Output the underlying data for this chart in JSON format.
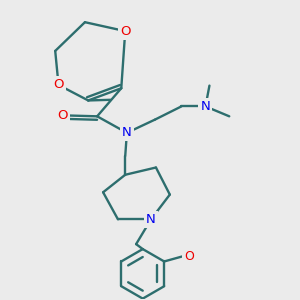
{
  "bg_color": "#ebebeb",
  "bond_color": "#2d6e6e",
  "N_color": "#0000ee",
  "O_color": "#ee0000",
  "lw": 1.7,
  "figsize": [
    3.0,
    3.0
  ],
  "dpi": 100,
  "xlim": [
    0,
    300
  ],
  "ylim": [
    0,
    300
  ]
}
